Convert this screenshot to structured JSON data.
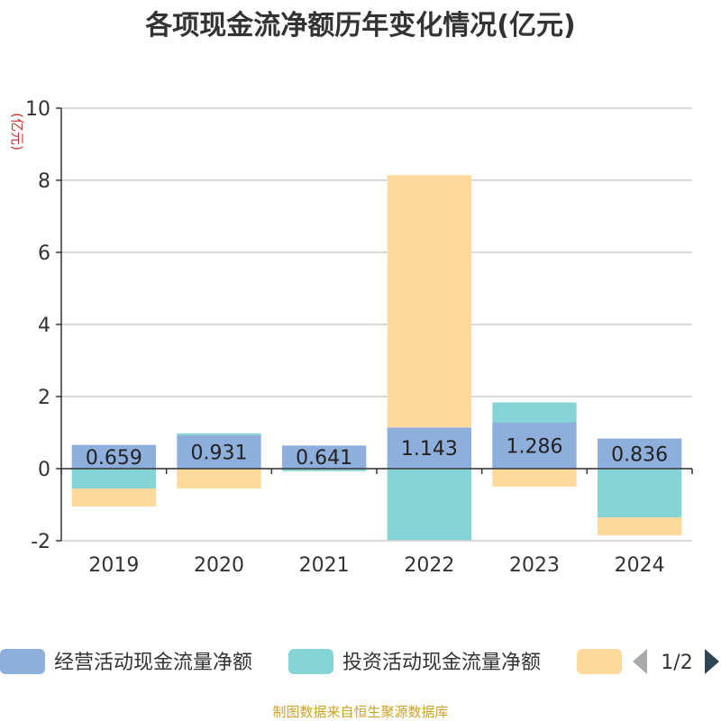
{
  "chart_data": {
    "type": "bar",
    "title": "各项现金流净额历年变化情况(亿元)",
    "ylabel": "(亿元)",
    "categories": [
      "2019",
      "2020",
      "2021",
      "2022",
      "2023",
      "2024"
    ],
    "yticks": [
      "10",
      "8",
      "6",
      "4",
      "2",
      "0",
      "-2"
    ],
    "ylim": [
      -2,
      10
    ],
    "grid": true,
    "legend_position": "bottom",
    "series": [
      {
        "name": "经营活动现金流量净额",
        "color": "#8eaedc",
        "values": [
          0.659,
          0.931,
          0.641,
          1.143,
          1.286,
          0.836
        ],
        "value_labels": [
          "0.659",
          "0.931",
          "0.641",
          "1.143",
          "1.286",
          "0.836"
        ]
      },
      {
        "name": "投资活动现金流量净额",
        "color": "#85d5d6",
        "values": [
          -0.55,
          0.05,
          -0.07,
          -1.98,
          0.55,
          -1.35
        ]
      },
      {
        "name": "",
        "color": "#fdd99b",
        "values": [
          -0.5,
          -0.55,
          0,
          7.0,
          -0.5,
          -0.5
        ]
      }
    ],
    "legend_page": "1/2",
    "source": "制图数据来自恒生聚源数据库"
  }
}
